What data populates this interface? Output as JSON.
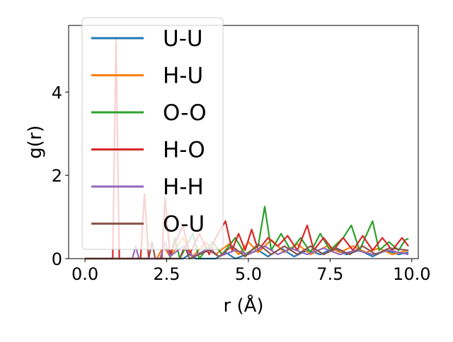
{
  "chart_data": {
    "type": "line",
    "title": "",
    "xlabel": "r (Å)",
    "ylabel": "g(r)",
    "xlim": [
      -0.5,
      10.2
    ],
    "ylim": [
      0,
      5.6
    ],
    "xticks": [
      0.0,
      2.5,
      5.0,
      7.5,
      10.0
    ],
    "xtick_labels": [
      "0.0",
      "2.5",
      "5.0",
      "7.5",
      "10.0"
    ],
    "yticks": [
      0,
      2,
      4
    ],
    "ytick_labels": [
      "0",
      "2",
      "4"
    ],
    "grid": false,
    "legend_position": "top-left",
    "series": [
      {
        "name": "U-U",
        "color": "#1f77b4",
        "points": [
          [
            0,
            0
          ],
          [
            3.0,
            0
          ],
          [
            3.2,
            0.1
          ],
          [
            3.4,
            0
          ],
          [
            4.0,
            0
          ],
          [
            4.3,
            0.15
          ],
          [
            4.6,
            0
          ],
          [
            5.3,
            0.2
          ],
          [
            5.6,
            0.05
          ],
          [
            6.0,
            0.25
          ],
          [
            6.4,
            0.05
          ],
          [
            6.8,
            0.2
          ],
          [
            7.2,
            0.1
          ],
          [
            7.6,
            0.25
          ],
          [
            8.0,
            0.1
          ],
          [
            8.4,
            0.2
          ],
          [
            8.8,
            0.05
          ],
          [
            9.2,
            0.2
          ],
          [
            9.6,
            0.1
          ],
          [
            9.9,
            0.15
          ]
        ]
      },
      {
        "name": "H-U",
        "color": "#ff7f0e",
        "points": [
          [
            0,
            0
          ],
          [
            2.2,
            0
          ],
          [
            2.4,
            0.3
          ],
          [
            2.6,
            0.05
          ],
          [
            3.0,
            0.5
          ],
          [
            3.3,
            0.05
          ],
          [
            3.7,
            0.4
          ],
          [
            4.0,
            0.1
          ],
          [
            4.4,
            0.35
          ],
          [
            4.7,
            0.1
          ],
          [
            5.0,
            0.4
          ],
          [
            5.3,
            0.15
          ],
          [
            5.7,
            0.45
          ],
          [
            6.1,
            0.15
          ],
          [
            6.5,
            0.35
          ],
          [
            6.9,
            0.1
          ],
          [
            7.4,
            0.3
          ],
          [
            7.8,
            0.15
          ],
          [
            8.2,
            0.3
          ],
          [
            8.6,
            0.15
          ],
          [
            9.0,
            0.25
          ],
          [
            9.4,
            0.1
          ],
          [
            9.9,
            0.2
          ]
        ]
      },
      {
        "name": "O-O",
        "color": "#2ca02c",
        "points": [
          [
            0,
            0
          ],
          [
            2.6,
            0
          ],
          [
            2.75,
            0.5
          ],
          [
            2.9,
            0
          ],
          [
            3.3,
            0.6
          ],
          [
            3.5,
            0
          ],
          [
            3.9,
            0.4
          ],
          [
            4.2,
            0.1
          ],
          [
            4.6,
            0.5
          ],
          [
            4.9,
            0.1
          ],
          [
            5.3,
            0.3
          ],
          [
            5.5,
            1.25
          ],
          [
            5.7,
            0.2
          ],
          [
            6.0,
            0.6
          ],
          [
            6.3,
            0.2
          ],
          [
            6.6,
            0.5
          ],
          [
            6.9,
            0.15
          ],
          [
            7.2,
            0.6
          ],
          [
            7.5,
            0.2
          ],
          [
            7.9,
            0.5
          ],
          [
            8.15,
            0.8
          ],
          [
            8.4,
            0.2
          ],
          [
            8.8,
            0.9
          ],
          [
            9.0,
            0.2
          ],
          [
            9.3,
            0.4
          ],
          [
            9.6,
            0.2
          ],
          [
            9.8,
            0.45
          ],
          [
            9.9,
            0.48
          ]
        ]
      },
      {
        "name": "H-O",
        "color": "#d62728",
        "points": [
          [
            0,
            0
          ],
          [
            0.85,
            0
          ],
          [
            0.95,
            5.3
          ],
          [
            1.05,
            0
          ],
          [
            1.7,
            0
          ],
          [
            1.82,
            1.55
          ],
          [
            1.95,
            0
          ],
          [
            2.35,
            0
          ],
          [
            2.45,
            1.45
          ],
          [
            2.6,
            0.1
          ],
          [
            3.0,
            0.8
          ],
          [
            3.2,
            0.1
          ],
          [
            3.5,
            0.6
          ],
          [
            3.8,
            0.1
          ],
          [
            4.0,
            0.5
          ],
          [
            4.3,
            0.9
          ],
          [
            4.5,
            0.2
          ],
          [
            4.7,
            0.6
          ],
          [
            4.9,
            0.2
          ],
          [
            5.1,
            0.7
          ],
          [
            5.3,
            0.2
          ],
          [
            5.6,
            0.5
          ],
          [
            5.9,
            0.3
          ],
          [
            6.2,
            0.55
          ],
          [
            6.5,
            0.2
          ],
          [
            6.8,
            0.8
          ],
          [
            7.0,
            0.2
          ],
          [
            7.3,
            0.5
          ],
          [
            7.6,
            0.2
          ],
          [
            7.9,
            0.5
          ],
          [
            8.2,
            0.2
          ],
          [
            8.5,
            0.55
          ],
          [
            8.8,
            0.2
          ],
          [
            9.1,
            0.5
          ],
          [
            9.4,
            0.2
          ],
          [
            9.7,
            0.5
          ],
          [
            9.9,
            0.3
          ]
        ]
      },
      {
        "name": "H-H",
        "color": "#9467bd",
        "points": [
          [
            0,
            0
          ],
          [
            1.45,
            0
          ],
          [
            1.55,
            0.3
          ],
          [
            1.65,
            0
          ],
          [
            2.3,
            0
          ],
          [
            2.45,
            0.4
          ],
          [
            2.6,
            0.05
          ],
          [
            3.0,
            0.3
          ],
          [
            3.3,
            0.05
          ],
          [
            3.8,
            0.25
          ],
          [
            4.1,
            0.05
          ],
          [
            4.6,
            0.2
          ],
          [
            5.0,
            0.1
          ],
          [
            5.5,
            0.3
          ],
          [
            5.9,
            0.1
          ],
          [
            6.3,
            0.25
          ],
          [
            6.8,
            0.1
          ],
          [
            7.3,
            0.25
          ],
          [
            7.8,
            0.1
          ],
          [
            8.3,
            0.2
          ],
          [
            8.8,
            0.1
          ],
          [
            9.3,
            0.2
          ],
          [
            9.9,
            0.1
          ]
        ]
      },
      {
        "name": "O-U",
        "color": "#8c564b",
        "points": [
          [
            0,
            0
          ],
          [
            1.95,
            0
          ],
          [
            2.05,
            0.4
          ],
          [
            2.15,
            0
          ],
          [
            2.9,
            0
          ],
          [
            3.05,
            0.3
          ],
          [
            3.2,
            0
          ],
          [
            3.8,
            0.2
          ],
          [
            4.1,
            0.05
          ],
          [
            4.5,
            0.3
          ],
          [
            4.9,
            0.05
          ],
          [
            5.3,
            0.35
          ],
          [
            5.7,
            0.1
          ],
          [
            6.1,
            0.3
          ],
          [
            6.5,
            0.1
          ],
          [
            6.9,
            0.3
          ],
          [
            7.3,
            0.1
          ],
          [
            7.7,
            0.25
          ],
          [
            8.1,
            0.1
          ],
          [
            8.5,
            0.3
          ],
          [
            8.9,
            0.1
          ],
          [
            9.3,
            0.25
          ],
          [
            9.9,
            0.2
          ]
        ]
      }
    ]
  }
}
